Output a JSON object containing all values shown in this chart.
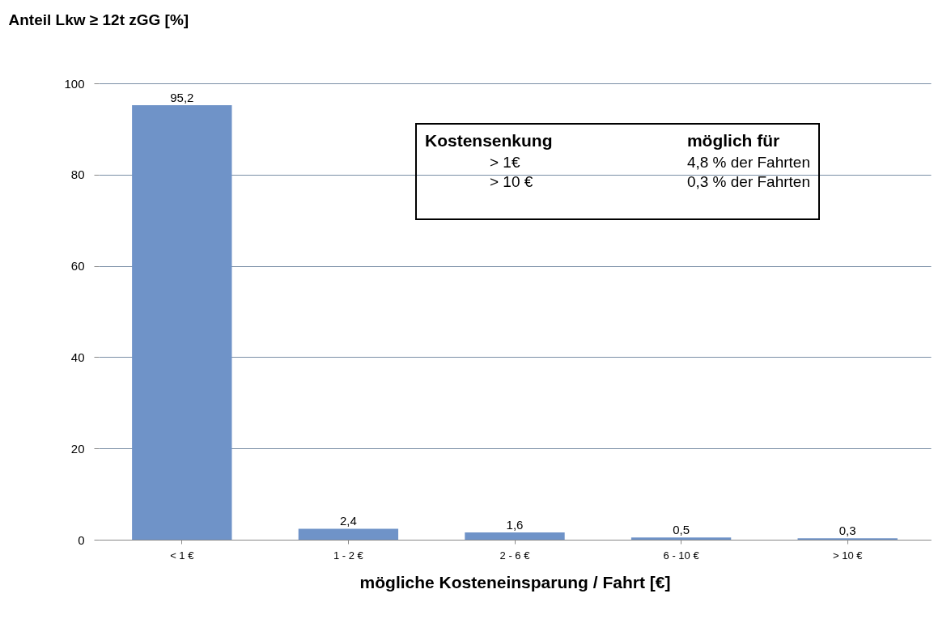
{
  "chart_data": {
    "type": "bar",
    "ylabel": "Anteil Lkw ≥ 12t zGG [%]",
    "xlabel": "mögliche Kosteneinsparung / Fahrt [€]",
    "categories": [
      "< 1 €",
      "1 - 2 €",
      "2 - 6 €",
      "6 - 10 €",
      "> 10 €"
    ],
    "values": [
      95.2,
      2.4,
      1.6,
      0.5,
      0.3
    ],
    "value_labels": [
      "95,2",
      "2,4",
      "1,6",
      "0,5",
      "0,3"
    ],
    "color": "#6f93c8",
    "ylim": [
      0,
      100
    ],
    "yticks": [
      0,
      20,
      40,
      60,
      80,
      100
    ],
    "grid": "y",
    "annotations": [
      "Kostensenkung",
      "möglich für",
      "> 1€",
      "4,8 % der Fahrten",
      "> 10 €",
      "0,3 % der Fahrten"
    ]
  }
}
